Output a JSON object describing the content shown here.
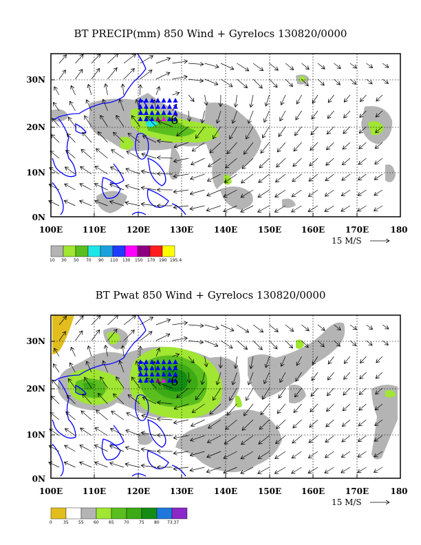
{
  "panels": [
    {
      "title": "BT PRECIP(mm) 850 Wind + Gyrelocs 130820/0000",
      "lat_labels": [
        "30N",
        "20N",
        "10N",
        "0N"
      ],
      "lon_labels": [
        "100E",
        "110E",
        "120E",
        "130E",
        "140E",
        "150E",
        "160E",
        "170E",
        "180"
      ],
      "ref_vector": "15 M/S",
      "storm_symbol": "6",
      "legend": {
        "labels": [
          "10",
          "30",
          "50",
          "70",
          "90",
          "110",
          "130",
          "150",
          "170",
          "190",
          "195.4"
        ],
        "colors": [
          "#b4b4b4",
          "#a0e632",
          "#5abe1e",
          "#1ee6e6",
          "#1ea0dc",
          "#1e3cff",
          "#ff00ff",
          "#8c0082",
          "#ff1e1e",
          "#ffff00"
        ]
      }
    },
    {
      "title": "BT Pwat 850 Wind + Gyrelocs 130820/0000",
      "lat_labels": [
        "30N",
        "20N",
        "10N",
        "0N"
      ],
      "lon_labels": [
        "100E",
        "110E",
        "120E",
        "130E",
        "140E",
        "150E",
        "160E",
        "170E",
        "180"
      ],
      "ref_vector": "15 M/S",
      "storm_symbol": "6",
      "legend": {
        "labels": [
          "0",
          "35",
          "55",
          "60",
          "65",
          "70",
          "75",
          "80",
          "73.37"
        ],
        "colors": [
          "#e1be1e",
          "#ffffff",
          "#b4b4b4",
          "#a0e632",
          "#5abe1e",
          "#3caa14",
          "#148c14",
          "#1e78dc",
          "#8c28c8"
        ]
      }
    }
  ],
  "colors": {
    "coast": "#0000ff",
    "grid": "#000000",
    "frame": "#000000"
  }
}
